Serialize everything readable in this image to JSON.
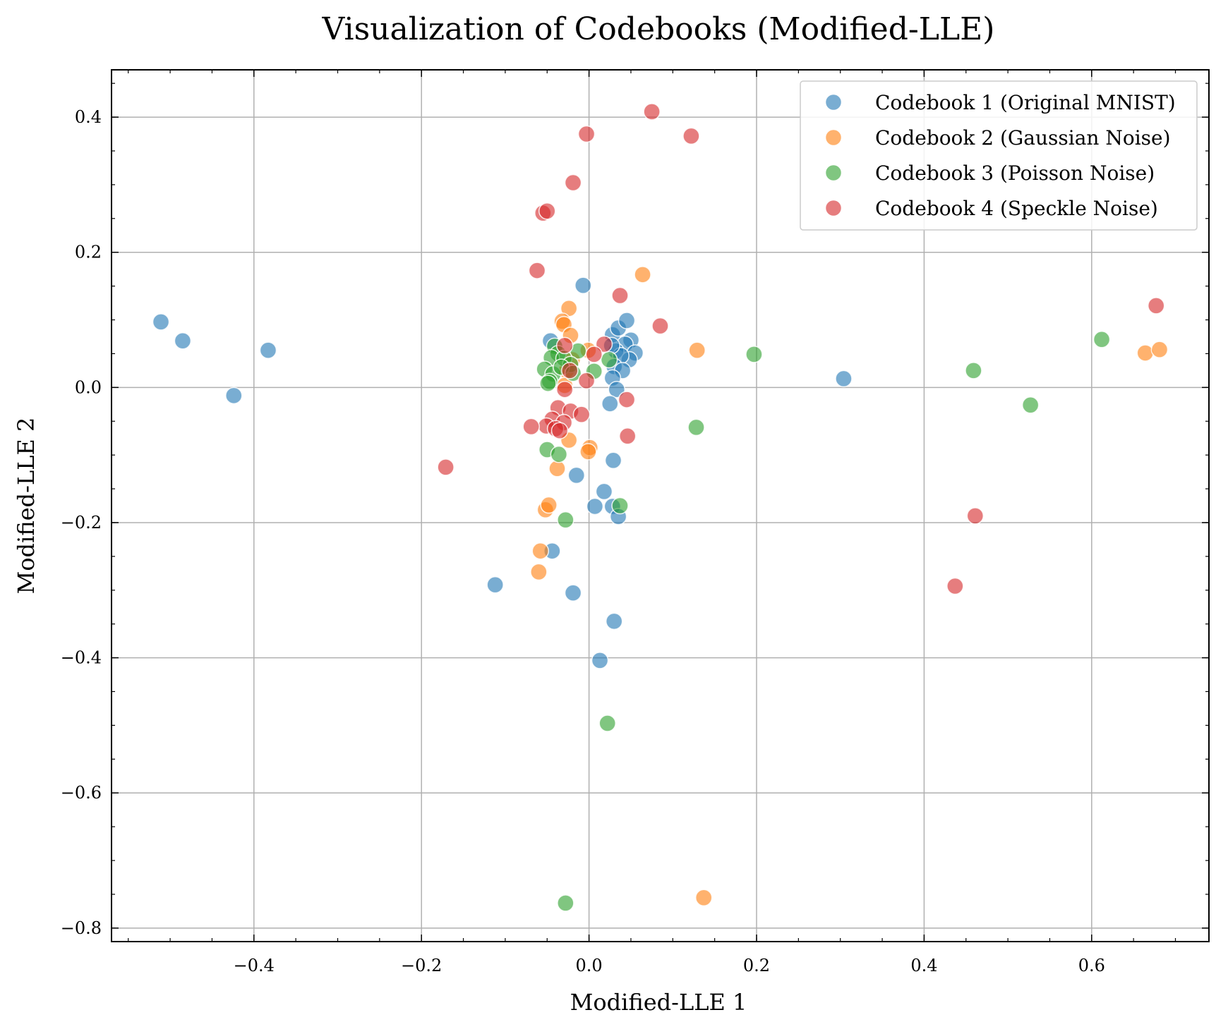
{
  "chart_data": {
    "type": "scatter",
    "title": "Visualization of Codebooks (Modified-LLE)",
    "xlabel": "Modified-LLE 1",
    "ylabel": "Modified-LLE 2",
    "xlim": [
      -0.57,
      0.74
    ],
    "ylim": [
      -0.82,
      0.47
    ],
    "xticks": [
      -0.4,
      -0.2,
      0.0,
      0.2,
      0.4,
      0.6
    ],
    "yticks": [
      0.4,
      0.2,
      0.0,
      -0.2,
      -0.4,
      -0.6,
      -0.8
    ],
    "xtick_labels": [
      "−0.4",
      "−0.2",
      "0.0",
      "0.2",
      "0.4",
      "0.6"
    ],
    "ytick_labels": [
      "0.4",
      "0.2",
      "0.0",
      "−0.2",
      "−0.4",
      "−0.6",
      "−0.8"
    ],
    "grid": true,
    "legend_position": "top-right",
    "series": [
      {
        "name": "Codebook 1 (Original MNIST)",
        "color": "#1f77b4",
        "points": [
          [
            -0.511,
            0.097
          ],
          [
            -0.485,
            0.069
          ],
          [
            -0.383,
            0.055
          ],
          [
            -0.424,
            -0.012
          ],
          [
            -0.007,
            0.151
          ],
          [
            0.304,
            0.013
          ],
          [
            -0.046,
            0.069
          ],
          [
            0.028,
            0.078
          ],
          [
            0.035,
            0.088
          ],
          [
            0.045,
            0.099
          ],
          [
            0.05,
            0.07
          ],
          [
            0.043,
            0.064
          ],
          [
            0.032,
            0.054
          ],
          [
            0.055,
            0.051
          ],
          [
            0.048,
            0.041
          ],
          [
            0.038,
            0.047
          ],
          [
            0.027,
            0.062
          ],
          [
            0.03,
            0.031
          ],
          [
            0.04,
            0.025
          ],
          [
            0.028,
            0.014
          ],
          [
            0.033,
            -0.003
          ],
          [
            0.025,
            -0.024
          ],
          [
            0.029,
            -0.108
          ],
          [
            -0.015,
            -0.13
          ],
          [
            0.018,
            -0.154
          ],
          [
            0.007,
            -0.176
          ],
          [
            0.028,
            -0.176
          ],
          [
            0.035,
            -0.191
          ],
          [
            -0.044,
            -0.242
          ],
          [
            -0.112,
            -0.292
          ],
          [
            -0.019,
            -0.304
          ],
          [
            0.03,
            -0.346
          ],
          [
            0.013,
            -0.404
          ]
        ]
      },
      {
        "name": "Codebook 2 (Gaussian Noise)",
        "color": "#ff7f0e",
        "points": [
          [
            0.064,
            0.167
          ],
          [
            -0.024,
            0.117
          ],
          [
            -0.032,
            0.098
          ],
          [
            -0.03,
            0.093
          ],
          [
            -0.022,
            0.077
          ],
          [
            0.129,
            0.055
          ],
          [
            0.664,
            0.051
          ],
          [
            0.681,
            0.056
          ],
          [
            -0.001,
            0.055
          ],
          [
            -0.02,
            0.041
          ],
          [
            -0.027,
            0.025
          ],
          [
            -0.029,
            0.003
          ],
          [
            -0.024,
            -0.078
          ],
          [
            0.001,
            -0.089
          ],
          [
            -0.001,
            -0.095
          ],
          [
            -0.038,
            -0.12
          ],
          [
            -0.052,
            -0.181
          ],
          [
            -0.048,
            -0.174
          ],
          [
            -0.058,
            -0.242
          ],
          [
            -0.06,
            -0.273
          ],
          [
            0.137,
            -0.755
          ]
        ]
      },
      {
        "name": "Codebook 3 (Poisson Noise)",
        "color": "#2ca02c",
        "points": [
          [
            0.197,
            0.049
          ],
          [
            0.612,
            0.071
          ],
          [
            0.459,
            0.025
          ],
          [
            0.527,
            -0.026
          ],
          [
            0.128,
            -0.059
          ],
          [
            -0.041,
            0.061
          ],
          [
            -0.037,
            0.05
          ],
          [
            -0.045,
            0.044
          ],
          [
            -0.013,
            0.054
          ],
          [
            -0.03,
            0.043
          ],
          [
            -0.022,
            0.034
          ],
          [
            -0.053,
            0.027
          ],
          [
            -0.043,
            0.02
          ],
          [
            -0.033,
            0.03
          ],
          [
            -0.019,
            0.021
          ],
          [
            0.006,
            0.024
          ],
          [
            0.024,
            0.041
          ],
          [
            -0.047,
            0.009
          ],
          [
            -0.049,
            0.006
          ],
          [
            -0.05,
            -0.092
          ],
          [
            -0.036,
            -0.099
          ],
          [
            0.037,
            -0.175
          ],
          [
            -0.028,
            -0.196
          ],
          [
            0.022,
            -0.497
          ],
          [
            -0.028,
            -0.763
          ]
        ]
      },
      {
        "name": "Codebook 4 (Speckle Noise)",
        "color": "#d62728",
        "points": [
          [
            0.075,
            0.408
          ],
          [
            -0.003,
            0.375
          ],
          [
            0.122,
            0.372
          ],
          [
            -0.019,
            0.303
          ],
          [
            -0.055,
            0.258
          ],
          [
            -0.05,
            0.261
          ],
          [
            -0.062,
            0.173
          ],
          [
            0.037,
            0.136
          ],
          [
            0.085,
            0.091
          ],
          [
            0.677,
            0.121
          ],
          [
            0.018,
            0.064
          ],
          [
            0.006,
            0.049
          ],
          [
            -0.029,
            0.062
          ],
          [
            -0.003,
            0.01
          ],
          [
            -0.023,
            0.025
          ],
          [
            -0.029,
            -0.003
          ],
          [
            0.045,
            -0.018
          ],
          [
            -0.037,
            -0.03
          ],
          [
            -0.022,
            -0.035
          ],
          [
            -0.009,
            -0.04
          ],
          [
            -0.044,
            -0.047
          ],
          [
            -0.03,
            -0.052
          ],
          [
            -0.051,
            -0.057
          ],
          [
            -0.04,
            -0.061
          ],
          [
            -0.035,
            -0.064
          ],
          [
            -0.069,
            -0.058
          ],
          [
            0.046,
            -0.072
          ],
          [
            -0.171,
            -0.118
          ],
          [
            0.461,
            -0.19
          ],
          [
            0.437,
            -0.294
          ]
        ]
      }
    ]
  }
}
